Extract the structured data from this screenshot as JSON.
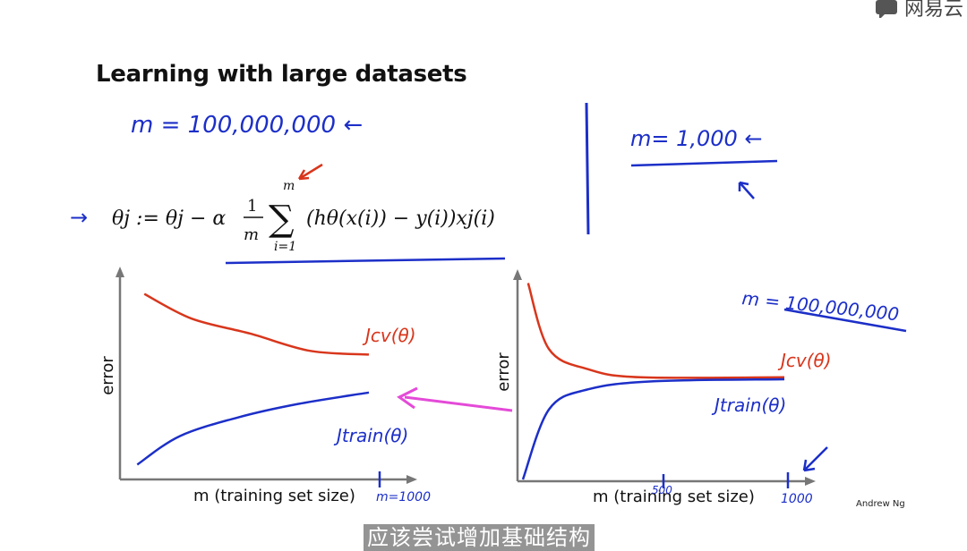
{
  "slide": {
    "title": "Learning with large datasets",
    "author": "Andrew Ng",
    "subtitle": "应该尝试增加基础结构",
    "watermark": "网易云"
  },
  "annotations": {
    "m_large": "m = 100,000,000 ←",
    "m_small": "m= 1,000 ←",
    "m_large_right": "m = 100,000,000"
  },
  "formula": {
    "arrow": "→",
    "lhs": "θj := θj − α",
    "frac_num": "1",
    "frac_den": "m",
    "sum_top": "m",
    "sum_bottom": "i=1",
    "body": "(hθ(x(i)) − y(i))xj(i)"
  },
  "chart_data": [
    {
      "type": "line",
      "ylabel": "error",
      "xlabel": "m  (training set size)",
      "x_mark_label": "m=1000",
      "series": [
        {
          "name": "Jcv(θ)",
          "color": "#d8361c",
          "values": [
            [
              0.05,
              0.95
            ],
            [
              0.25,
              0.82
            ],
            [
              0.5,
              0.74
            ],
            [
              0.75,
              0.65
            ],
            [
              1.0,
              0.63
            ]
          ]
        },
        {
          "name": "Jtrain(θ)",
          "color": "#1c2fc8",
          "values": [
            [
              0.02,
              0.05
            ],
            [
              0.2,
              0.2
            ],
            [
              0.45,
              0.3
            ],
            [
              0.7,
              0.37
            ],
            [
              1.0,
              0.43
            ]
          ]
        }
      ]
    },
    {
      "type": "line",
      "ylabel": "error",
      "xlabel": "m  (training set size)",
      "x_mark_label": "500",
      "x_end_label": "1000",
      "series": [
        {
          "name": "Jcv(θ)",
          "color": "#d8361c",
          "values": [
            [
              0.02,
              0.98
            ],
            [
              0.1,
              0.65
            ],
            [
              0.25,
              0.55
            ],
            [
              0.45,
              0.51
            ],
            [
              1.0,
              0.51
            ]
          ]
        },
        {
          "name": "Jtrain(θ)",
          "color": "#1c2fc8",
          "values": [
            [
              0.0,
              0.0
            ],
            [
              0.1,
              0.35
            ],
            [
              0.25,
              0.45
            ],
            [
              0.5,
              0.49
            ],
            [
              1.0,
              0.5
            ]
          ]
        }
      ]
    }
  ]
}
